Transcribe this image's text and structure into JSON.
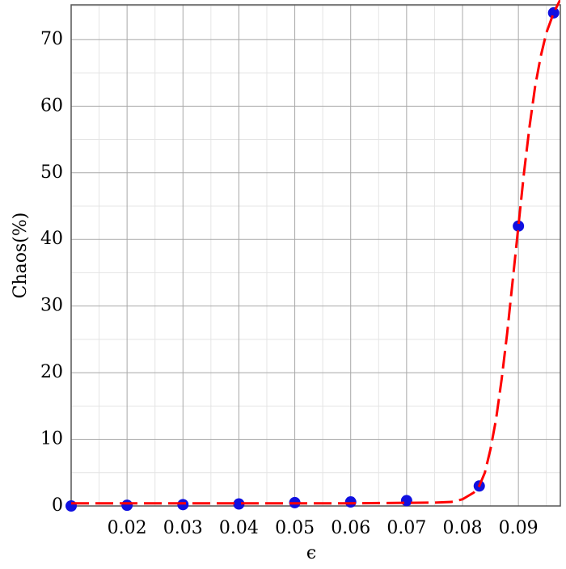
{
  "chart_data": {
    "type": "scatter",
    "xlabel": "ϵ",
    "ylabel": "Chaos(%)",
    "xlim": [
      0.01,
      0.0975
    ],
    "ylim": [
      0,
      75.2
    ],
    "xticks": [
      0.02,
      0.03,
      0.04,
      0.05,
      0.06,
      0.07,
      0.08,
      0.09
    ],
    "yticks": [
      0,
      10,
      20,
      30,
      40,
      50,
      60,
      70
    ],
    "xticks_minor": [
      0.015,
      0.025,
      0.035,
      0.045,
      0.055,
      0.065,
      0.075,
      0.085,
      0.095
    ],
    "yticks_minor": [
      5,
      15,
      25,
      35,
      45,
      55,
      65,
      75
    ],
    "grid": true,
    "series": [
      {
        "kind": "points",
        "color": "#1010e0",
        "x": [
          0.01,
          0.02,
          0.03,
          0.04,
          0.05,
          0.06,
          0.07,
          0.083,
          0.09,
          0.0963
        ],
        "values": [
          0,
          0.1,
          0.2,
          0.3,
          0.5,
          0.6,
          0.8,
          3,
          42,
          74
        ]
      },
      {
        "kind": "curve",
        "color": "#ff0000",
        "x": [
          0.01,
          0.06,
          0.075,
          0.078,
          0.08,
          0.082,
          0.083,
          0.084,
          0.085,
          0.086,
          0.087,
          0.088,
          0.089,
          0.09,
          0.091,
          0.092,
          0.093,
          0.094,
          0.095,
          0.0963,
          0.0975
        ],
        "values": [
          0.4,
          0.4,
          0.5,
          0.6,
          1,
          2,
          3,
          5,
          8.5,
          13,
          19,
          26,
          34,
          42,
          50,
          57,
          63,
          67.5,
          71,
          74,
          76
        ]
      }
    ]
  }
}
